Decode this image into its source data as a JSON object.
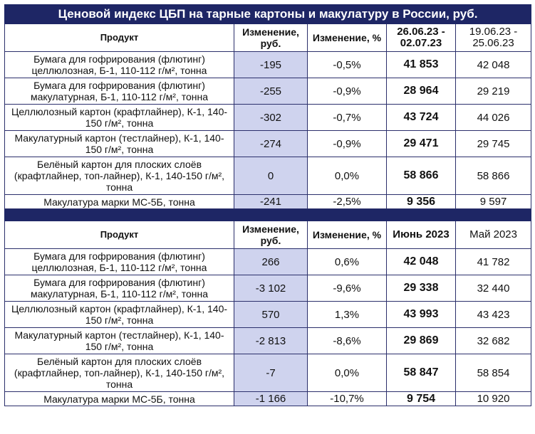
{
  "title": "Ценовой индекс ЦБП на тарные картоны и макулатуру в России, руб.",
  "weekly": {
    "headers": {
      "product": "Продукт",
      "change_rub": "Изменение, руб.",
      "change_pct": "Изменение, %",
      "current": "26.06.23 - 02.07.23",
      "previous": "19.06.23 - 25.06.23"
    },
    "rows": [
      {
        "product": "Бумага для гофрирования (флютинг) целлюлозная, Б-1, 110-112 г/м², тонна",
        "change_rub": "-195",
        "change_pct": "-0,5%",
        "current": "41 853",
        "previous": "42 048"
      },
      {
        "product": "Бумага для гофрирования (флютинг) макулатурная, Б-1, 110-112 г/м², тонна",
        "change_rub": "-255",
        "change_pct": "-0,9%",
        "current": "28 964",
        "previous": "29 219"
      },
      {
        "product": "Целлюлозный картон (крафтлайнер), К-1, 140-150 г/м², тонна",
        "change_rub": "-302",
        "change_pct": "-0,7%",
        "current": "43 724",
        "previous": "44 026"
      },
      {
        "product": "Макулатурный картон (тестлайнер), К-1, 140-150 г/м², тонна",
        "change_rub": "-274",
        "change_pct": "-0,9%",
        "current": "29 471",
        "previous": "29 745"
      },
      {
        "product": "Белёный картон для плоских слоёв (крафтлайнер, топ-лайнер), К-1, 140-150 г/м², тонна",
        "change_rub": "0",
        "change_pct": "0,0%",
        "current": "58 866",
        "previous": "58 866"
      },
      {
        "product": "Макулатура марки МС-5Б, тонна",
        "change_rub": "-241",
        "change_pct": "-2,5%",
        "current": "9 356",
        "previous": "9 597"
      }
    ]
  },
  "monthly": {
    "headers": {
      "product": "Продукт",
      "change_rub": "Изменение, руб.",
      "change_pct": "Изменение, %",
      "current": "Июнь 2023",
      "previous": "Май 2023"
    },
    "rows": [
      {
        "product": "Бумага для гофрирования (флютинг) целлюлозная, Б-1, 110-112 г/м², тонна",
        "change_rub": "266",
        "change_pct": "0,6%",
        "current": "42 048",
        "previous": "41 782"
      },
      {
        "product": "Бумага для гофрирования (флютинг) макулатурная, Б-1, 110-112 г/м², тонна",
        "change_rub": "-3 102",
        "change_pct": "-9,6%",
        "current": "29 338",
        "previous": "32 440"
      },
      {
        "product": "Целлюлозный картон (крафтлайнер), К-1, 140-150 г/м², тонна",
        "change_rub": "570",
        "change_pct": "1,3%",
        "current": "43 993",
        "previous": "43 423"
      },
      {
        "product": "Макулатурный картон (тестлайнер), К-1, 140-150 г/м², тонна",
        "change_rub": "-2 813",
        "change_pct": "-8,6%",
        "current": "29 869",
        "previous": "32 682"
      },
      {
        "product": "Белёный картон для плоских слоёв (крафтлайнер, топ-лайнер), К-1, 140-150 г/м², тонна",
        "change_rub": "-7",
        "change_pct": "0,0%",
        "current": "58 847",
        "previous": "58 854"
      },
      {
        "product": "Макулатура марки МС-5Б, тонна",
        "change_rub": "-1 166",
        "change_pct": "-10,7%",
        "current": "9 754",
        "previous": "10 920"
      }
    ]
  }
}
